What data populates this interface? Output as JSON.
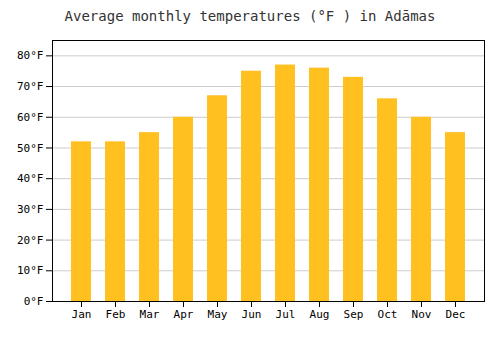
{
  "chart_data": {
    "type": "bar",
    "title": "Average monthly temperatures (°F ) in Adāmas",
    "categories": [
      "Jan",
      "Feb",
      "Mar",
      "Apr",
      "May",
      "Jun",
      "Jul",
      "Aug",
      "Sep",
      "Oct",
      "Nov",
      "Dec"
    ],
    "values": [
      52,
      52,
      55,
      60,
      67,
      75,
      77,
      76,
      73,
      66,
      60,
      55
    ],
    "color": "#FFC020",
    "ylim": [
      0,
      85
    ],
    "yticks": [
      {
        "value": 0,
        "label": "0°F"
      },
      {
        "value": 10,
        "label": "10°F"
      },
      {
        "value": 20,
        "label": "20°F"
      },
      {
        "value": 30,
        "label": "30°F"
      },
      {
        "value": 40,
        "label": "40°F"
      },
      {
        "value": 50,
        "label": "50°F"
      },
      {
        "value": 60,
        "label": "60°F"
      },
      {
        "value": 70,
        "label": "70°F"
      },
      {
        "value": 80,
        "label": "80°F"
      }
    ],
    "grid": true
  }
}
